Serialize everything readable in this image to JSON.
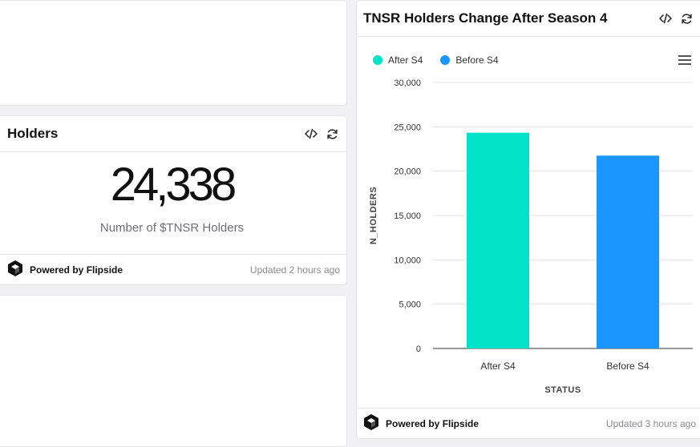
{
  "top_left_card": {},
  "holders_card": {
    "title": "Holders",
    "value": "24,338",
    "subtitle": "Number of $TNSR Holders",
    "powered_by": "Powered by Flipside",
    "updated": "Updated 2 hours ago"
  },
  "bottom_left_card": {},
  "chart_card": {
    "title": "TNSR Holders Change After Season 4",
    "powered_by": "Powered by Flipside",
    "updated": "Updated 3 hours ago"
  },
  "colors": {
    "after": "#00e3c9",
    "before": "#1b96ff"
  },
  "chart_data": {
    "type": "bar",
    "title": "TNSR Holders Change After Season 4",
    "categories": [
      "After S4",
      "Before S4"
    ],
    "values": [
      24338,
      21750
    ],
    "series": [
      {
        "name": "After S4",
        "values": [
          24338,
          null
        ]
      },
      {
        "name": "Before S4",
        "values": [
          null,
          21750
        ]
      }
    ],
    "legend": [
      "After S4",
      "Before S4"
    ],
    "xlabel": "STATUS",
    "ylabel": "N_HOLDERS",
    "ylim": [
      0,
      30000
    ],
    "yticks": [
      "0",
      "5,000",
      "10,000",
      "15,000",
      "20,000",
      "25,000",
      "30,000"
    ],
    "grid": true,
    "legend_position": "top-left"
  }
}
